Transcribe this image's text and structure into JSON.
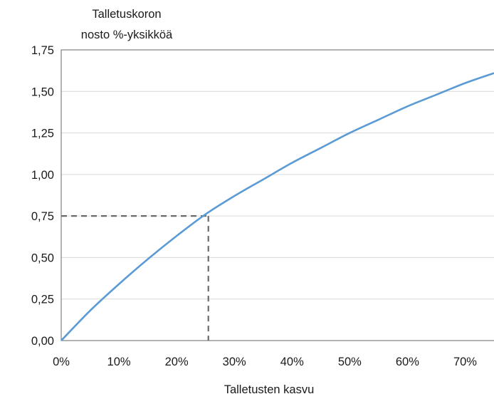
{
  "chart_data": {
    "type": "line",
    "ylabel_lines": [
      "Talletuskoron",
      "nosto %-yksikköä"
    ],
    "xlabel": "Talletusten kasvu",
    "xlim": [
      0,
      75
    ],
    "ylim": [
      0,
      1.75
    ],
    "x_ticks": [
      0,
      10,
      20,
      30,
      40,
      50,
      60,
      70
    ],
    "x_tick_labels": [
      "0%",
      "10%",
      "20%",
      "30%",
      "40%",
      "50%",
      "60%",
      "70%"
    ],
    "y_ticks": [
      0,
      0.25,
      0.5,
      0.75,
      1.0,
      1.25,
      1.5,
      1.75
    ],
    "y_tick_labels": [
      "0,00",
      "0,25",
      "0,50",
      "0,75",
      "1,00",
      "1,25",
      "1,50",
      "1,75"
    ],
    "grid": "horizontal",
    "series": [
      {
        "color": "#5b9bd5",
        "x": [
          0,
          5,
          10,
          15,
          20,
          25,
          30,
          35,
          40,
          45,
          50,
          55,
          60,
          65,
          70,
          75
        ],
        "y": [
          0,
          0.18,
          0.34,
          0.49,
          0.63,
          0.76,
          0.87,
          0.97,
          1.07,
          1.16,
          1.25,
          1.33,
          1.41,
          1.48,
          1.55,
          1.61
        ]
      }
    ],
    "reference": {
      "x": 25.5,
      "y": 0.75,
      "color": "#6b6b6b"
    },
    "colors": {
      "grid": "#d9d9d9",
      "axis": "#808080"
    }
  }
}
